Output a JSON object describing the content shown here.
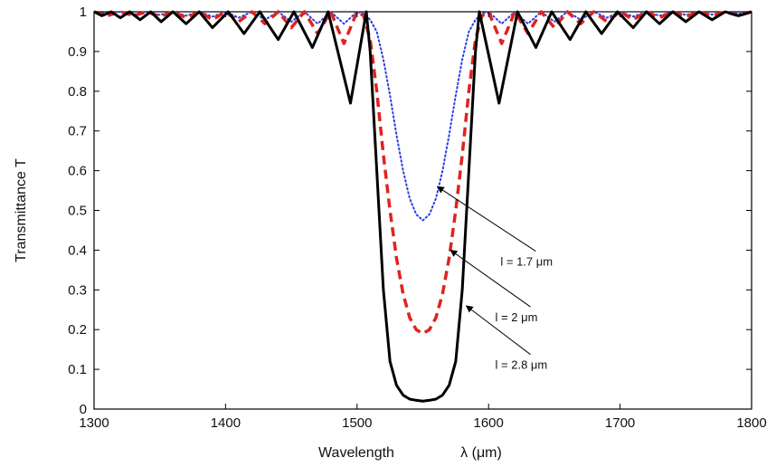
{
  "chart_data": {
    "type": "line",
    "xlabel_word": "Wavelength",
    "xlabel_unit": "λ  (μm)",
    "ylabel": "Transmittance  T",
    "xlim": [
      1300,
      1800
    ],
    "ylim": [
      0,
      1
    ],
    "x_ticks": [
      "1300",
      "1400",
      "1500",
      "1600",
      "1700",
      "1800"
    ],
    "y_ticks": [
      "0",
      "0.1",
      "0.2",
      "0.3",
      "0.4",
      "0.5",
      "0.6",
      "0.7",
      "0.8",
      "0.9",
      "1"
    ],
    "grid": false,
    "series": [
      {
        "name": "l = 1.7 μm",
        "color": "#2b3fe0",
        "style": "dotted",
        "points": [
          [
            1300,
            1.0
          ],
          [
            1310,
            0.995
          ],
          [
            1320,
            1.0
          ],
          [
            1330,
            0.993
          ],
          [
            1340,
            1.0
          ],
          [
            1350,
            0.992
          ],
          [
            1360,
            1.0
          ],
          [
            1370,
            0.99
          ],
          [
            1380,
            1.0
          ],
          [
            1390,
            0.988
          ],
          [
            1400,
            1.0
          ],
          [
            1410,
            0.985
          ],
          [
            1420,
            1.0
          ],
          [
            1430,
            0.98
          ],
          [
            1440,
            1.0
          ],
          [
            1450,
            0.975
          ],
          [
            1460,
            1.0
          ],
          [
            1470,
            0.97
          ],
          [
            1480,
            1.0
          ],
          [
            1490,
            0.97
          ],
          [
            1500,
            1.0
          ],
          [
            1505,
            0.995
          ],
          [
            1510,
            0.98
          ],
          [
            1515,
            0.95
          ],
          [
            1520,
            0.88
          ],
          [
            1525,
            0.79
          ],
          [
            1530,
            0.69
          ],
          [
            1535,
            0.6
          ],
          [
            1540,
            0.53
          ],
          [
            1545,
            0.49
          ],
          [
            1550,
            0.475
          ],
          [
            1555,
            0.49
          ],
          [
            1560,
            0.53
          ],
          [
            1565,
            0.6
          ],
          [
            1570,
            0.69
          ],
          [
            1575,
            0.79
          ],
          [
            1580,
            0.88
          ],
          [
            1585,
            0.95
          ],
          [
            1590,
            0.98
          ],
          [
            1595,
            0.995
          ],
          [
            1600,
            1.0
          ],
          [
            1610,
            0.97
          ],
          [
            1620,
            1.0
          ],
          [
            1630,
            0.97
          ],
          [
            1640,
            1.0
          ],
          [
            1650,
            0.975
          ],
          [
            1660,
            1.0
          ],
          [
            1670,
            0.98
          ],
          [
            1680,
            1.0
          ],
          [
            1690,
            0.985
          ],
          [
            1700,
            1.0
          ],
          [
            1710,
            0.988
          ],
          [
            1720,
            1.0
          ],
          [
            1730,
            0.99
          ],
          [
            1740,
            1.0
          ],
          [
            1750,
            0.992
          ],
          [
            1760,
            1.0
          ],
          [
            1770,
            0.993
          ],
          [
            1780,
            1.0
          ],
          [
            1790,
            0.995
          ],
          [
            1800,
            1.0
          ]
        ]
      },
      {
        "name": "l = 2 μm",
        "color": "#e0231f",
        "style": "dashed",
        "points": [
          [
            1300,
            1.0
          ],
          [
            1310,
            0.99
          ],
          [
            1320,
            1.0
          ],
          [
            1330,
            0.99
          ],
          [
            1340,
            1.0
          ],
          [
            1350,
            0.988
          ],
          [
            1360,
            1.0
          ],
          [
            1370,
            0.985
          ],
          [
            1380,
            1.0
          ],
          [
            1390,
            0.98
          ],
          [
            1400,
            1.0
          ],
          [
            1410,
            0.975
          ],
          [
            1420,
            1.0
          ],
          [
            1430,
            0.97
          ],
          [
            1440,
            1.0
          ],
          [
            1450,
            0.96
          ],
          [
            1460,
            1.0
          ],
          [
            1470,
            0.945
          ],
          [
            1480,
            1.0
          ],
          [
            1490,
            0.92
          ],
          [
            1500,
            1.0
          ],
          [
            1505,
            0.99
          ],
          [
            1510,
            0.93
          ],
          [
            1515,
            0.8
          ],
          [
            1520,
            0.64
          ],
          [
            1525,
            0.5
          ],
          [
            1530,
            0.38
          ],
          [
            1535,
            0.29
          ],
          [
            1540,
            0.23
          ],
          [
            1545,
            0.2
          ],
          [
            1550,
            0.19
          ],
          [
            1555,
            0.2
          ],
          [
            1560,
            0.23
          ],
          [
            1565,
            0.29
          ],
          [
            1570,
            0.38
          ],
          [
            1575,
            0.5
          ],
          [
            1580,
            0.64
          ],
          [
            1585,
            0.8
          ],
          [
            1590,
            0.93
          ],
          [
            1595,
            0.99
          ],
          [
            1600,
            1.0
          ],
          [
            1610,
            0.92
          ],
          [
            1620,
            1.0
          ],
          [
            1630,
            0.945
          ],
          [
            1640,
            1.0
          ],
          [
            1650,
            0.96
          ],
          [
            1660,
            1.0
          ],
          [
            1670,
            0.97
          ],
          [
            1680,
            1.0
          ],
          [
            1690,
            0.975
          ],
          [
            1700,
            1.0
          ],
          [
            1710,
            0.98
          ],
          [
            1720,
            1.0
          ],
          [
            1730,
            0.985
          ],
          [
            1740,
            1.0
          ],
          [
            1750,
            0.988
          ],
          [
            1760,
            1.0
          ],
          [
            1770,
            0.99
          ],
          [
            1780,
            1.0
          ],
          [
            1790,
            0.99
          ],
          [
            1800,
            1.0
          ]
        ]
      },
      {
        "name": "l = 2.8 μm",
        "color": "#000000",
        "style": "solid",
        "points": [
          [
            1300,
            1.0
          ],
          [
            1306,
            0.99
          ],
          [
            1313,
            1.0
          ],
          [
            1320,
            0.985
          ],
          [
            1327,
            1.0
          ],
          [
            1335,
            0.98
          ],
          [
            1343,
            1.0
          ],
          [
            1351,
            0.975
          ],
          [
            1360,
            1.0
          ],
          [
            1370,
            0.97
          ],
          [
            1380,
            1.0
          ],
          [
            1390,
            0.96
          ],
          [
            1402,
            1.0
          ],
          [
            1414,
            0.945
          ],
          [
            1426,
            1.0
          ],
          [
            1440,
            0.93
          ],
          [
            1452,
            1.0
          ],
          [
            1466,
            0.91
          ],
          [
            1478,
            1.0
          ],
          [
            1495,
            0.77
          ],
          [
            1507,
            1.0
          ],
          [
            1510,
            0.9
          ],
          [
            1515,
            0.6
          ],
          [
            1520,
            0.3
          ],
          [
            1525,
            0.12
          ],
          [
            1530,
            0.06
          ],
          [
            1535,
            0.035
          ],
          [
            1540,
            0.025
          ],
          [
            1545,
            0.022
          ],
          [
            1550,
            0.02
          ],
          [
            1555,
            0.022
          ],
          [
            1560,
            0.025
          ],
          [
            1565,
            0.035
          ],
          [
            1570,
            0.06
          ],
          [
            1575,
            0.12
          ],
          [
            1580,
            0.3
          ],
          [
            1585,
            0.6
          ],
          [
            1590,
            0.9
          ],
          [
            1593,
            1.0
          ],
          [
            1608,
            0.77
          ],
          [
            1622,
            1.0
          ],
          [
            1636,
            0.91
          ],
          [
            1648,
            1.0
          ],
          [
            1662,
            0.93
          ],
          [
            1674,
            1.0
          ],
          [
            1686,
            0.945
          ],
          [
            1698,
            1.0
          ],
          [
            1710,
            0.96
          ],
          [
            1720,
            1.0
          ],
          [
            1730,
            0.97
          ],
          [
            1740,
            1.0
          ],
          [
            1750,
            0.975
          ],
          [
            1760,
            1.0
          ],
          [
            1770,
            0.98
          ],
          [
            1780,
            1.0
          ],
          [
            1790,
            0.99
          ],
          [
            1800,
            1.0
          ]
        ]
      }
    ],
    "annotations": [
      {
        "text": "l = 1.7 μm",
        "target": [
          1561,
          0.56
        ],
        "label_at": [
          1640,
          0.37
        ]
      },
      {
        "text": "l = 2 μm",
        "target": [
          1571,
          0.4
        ],
        "label_at": [
          1636,
          0.23
        ]
      },
      {
        "text": "l = 2.8 μm",
        "target": [
          1583,
          0.26
        ],
        "label_at": [
          1636,
          0.11
        ]
      }
    ]
  }
}
